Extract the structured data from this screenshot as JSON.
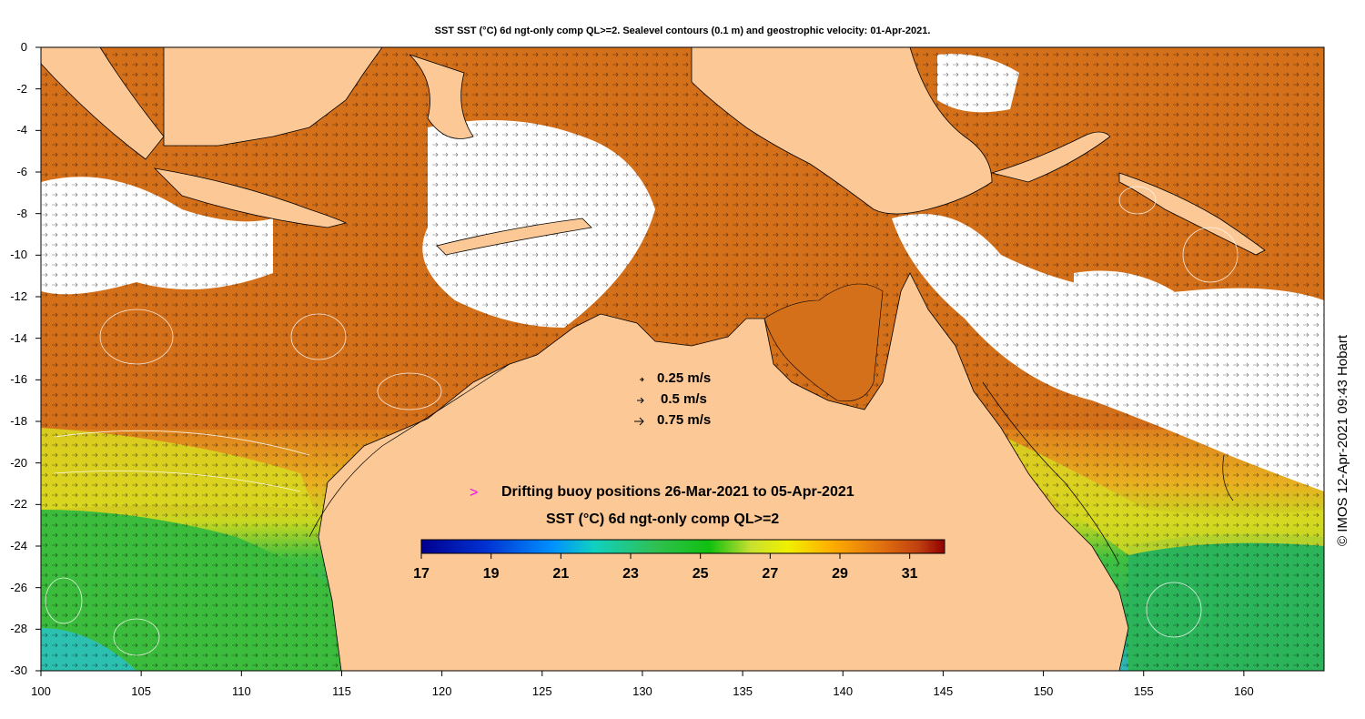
{
  "title": "SST SST (°C) 6d ngt-only comp QL>=2. Sealevel contours (0.1 m) and geostrophic velocity: 01-Apr-2021.",
  "credit": "© IMOS 12-Apr-2021 09:43 Hobart",
  "axes": {
    "x_ticks": [
      "100",
      "105",
      "110",
      "115",
      "120",
      "125",
      "130",
      "135",
      "140",
      "145",
      "150",
      "155",
      "160"
    ],
    "y_ticks": [
      "0",
      "-2",
      "-4",
      "-6",
      "-8",
      "-10",
      "-12",
      "-14",
      "-16",
      "-18",
      "-20",
      "-22",
      "-24",
      "-26",
      "-28",
      "-30"
    ],
    "lon_range": [
      100,
      164
    ],
    "lat_range": [
      -30,
      0
    ]
  },
  "velocity_legend": [
    {
      "label": "0.25 m/s"
    },
    {
      "label": "0.5 m/s"
    },
    {
      "label": "0.75 m/s"
    }
  ],
  "buoy_legend": {
    "marker": ">",
    "text": "Drifting buoy positions 26-Mar-2021 to 05-Apr-2021",
    "marker_color": "#ff00ff"
  },
  "colorbar": {
    "title": "SST (°C) 6d ngt-only comp QL>=2",
    "ticks": [
      "17",
      "19",
      "21",
      "23",
      "25",
      "27",
      "29",
      "31"
    ],
    "range": [
      17,
      32
    ]
  },
  "colors": {
    "land": "#fbc896",
    "warm_sea": "#d9741a",
    "cloud": "#ffffff",
    "green_sea": "#3fbf3a",
    "cyan_sea": "#28c8c8"
  }
}
